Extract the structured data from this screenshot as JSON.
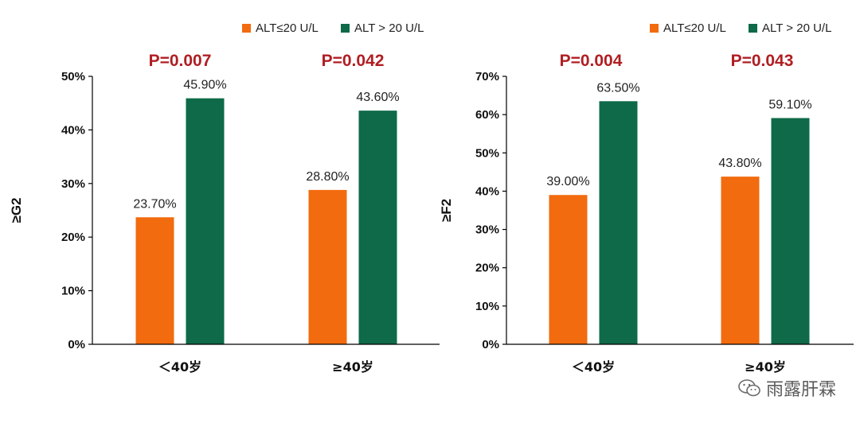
{
  "colors": {
    "alt_low": "#F26B0F",
    "alt_high": "#0E6A48",
    "p_value": "#B01E23",
    "axis": "#000000",
    "text": "#222222"
  },
  "watermark": {
    "text": "雨露肝霖",
    "icon": "wechat-icon"
  },
  "chart_data": [
    {
      "type": "bar",
      "ylabel": "≥G2",
      "ylim": [
        0,
        50
      ],
      "yticks": [
        0,
        10,
        20,
        30,
        40,
        50
      ],
      "ytick_labels": [
        "0%",
        "10%",
        "20%",
        "30%",
        "40%",
        "50%"
      ],
      "categories": [
        "＜40岁",
        "≥40岁"
      ],
      "series": [
        {
          "name": "ALT≤20 U/L",
          "values": [
            23.7,
            28.8
          ],
          "labels": [
            "23.70%",
            "28.80%"
          ]
        },
        {
          "name": "ALT > 20 U/L",
          "values": [
            45.9,
            43.6
          ],
          "labels": [
            "45.90%",
            "43.60%"
          ]
        }
      ],
      "p_values": [
        "P=0.007",
        "P=0.042"
      ],
      "legend": "top"
    },
    {
      "type": "bar",
      "ylabel": "≥F2",
      "ylim": [
        0,
        70
      ],
      "yticks": [
        0,
        10,
        20,
        30,
        40,
        50,
        60,
        70
      ],
      "ytick_labels": [
        "0%",
        "10%",
        "20%",
        "30%",
        "40%",
        "50%",
        "60%",
        "70%"
      ],
      "categories": [
        "＜40岁",
        "≥40岁"
      ],
      "series": [
        {
          "name": "ALT≤20 U/L",
          "values": [
            39.0,
            43.8
          ],
          "labels": [
            "39.00%",
            "43.80%"
          ]
        },
        {
          "name": "ALT > 20 U/L",
          "values": [
            63.5,
            59.1
          ],
          "labels": [
            "63.50%",
            "59.10%"
          ]
        }
      ],
      "p_values": [
        "P=0.004",
        "P=0.043"
      ],
      "legend": "top"
    }
  ]
}
